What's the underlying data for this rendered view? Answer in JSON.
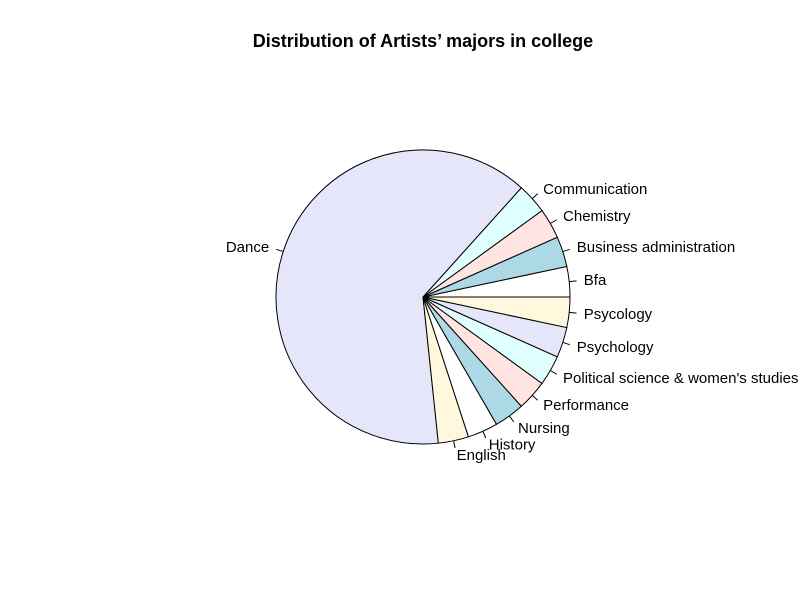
{
  "chart_data": {
    "type": "pie",
    "title": "Distribution of Artists’ majors in college",
    "slices": [
      {
        "label": "Bfa",
        "value": 1,
        "color": "#FFFFFF"
      },
      {
        "label": "Business administration",
        "value": 1,
        "color": "#ADD8E6"
      },
      {
        "label": "Chemistry",
        "value": 1,
        "color": "#FFE4E1"
      },
      {
        "label": "Communication",
        "value": 1,
        "color": "#E0FFFF"
      },
      {
        "label": "Dance",
        "value": 19,
        "color": "#E6E6FA"
      },
      {
        "label": "English",
        "value": 1,
        "color": "#FFF8DC"
      },
      {
        "label": "History",
        "value": 1,
        "color": "#FFFFFF"
      },
      {
        "label": "Nursing",
        "value": 1,
        "color": "#ADD8E6"
      },
      {
        "label": "Performance",
        "value": 1,
        "color": "#FFE4E1"
      },
      {
        "label": "Political science & women's studies",
        "value": 1,
        "color": "#E0FFFF"
      },
      {
        "label": "Psychology",
        "value": 1,
        "color": "#E6E6FA"
      },
      {
        "label": "Psycology",
        "value": 1,
        "color": "#FFF8DC"
      }
    ],
    "direction": "counterclockwise",
    "start_angle": "0 degrees (3 o'clock)",
    "legend": "none"
  }
}
